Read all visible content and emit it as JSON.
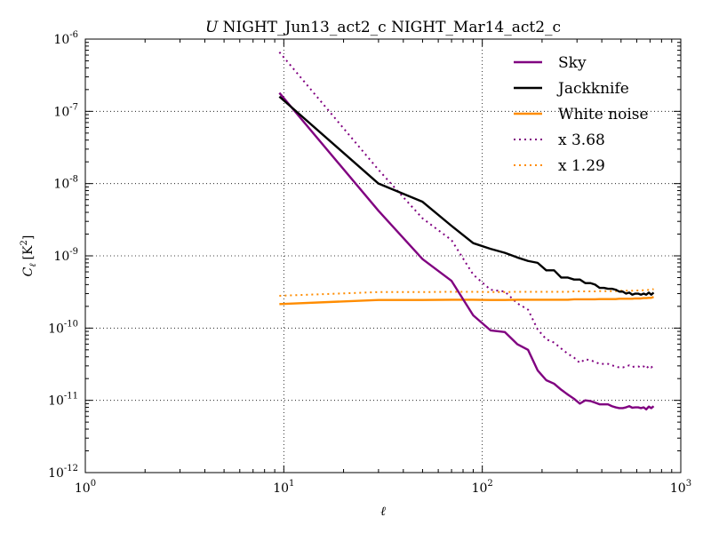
{
  "chart_data": {
    "type": "line",
    "title_prefix": "U",
    "title_rest": " NIGHT_Jun13_act2_c NIGHT_Mar14_act2_c",
    "xlabel": "ℓ",
    "ylabel_main": "C",
    "ylabel_sub": "ℓ",
    "ylabel_units": "[K",
    "ylabel_units_sup": "2",
    "ylabel_units_close": "]",
    "xscale": "log",
    "yscale": "log",
    "xlim": [
      1,
      1000
    ],
    "ylim": [
      1e-12,
      1e-06
    ],
    "grid": true,
    "legend_position": "top-right",
    "x_ticks": [
      {
        "value": 1,
        "base": "10",
        "exp": "0"
      },
      {
        "value": 10,
        "base": "10",
        "exp": "1"
      },
      {
        "value": 100,
        "base": "10",
        "exp": "2"
      },
      {
        "value": 1000,
        "base": "10",
        "exp": "3"
      }
    ],
    "y_ticks": [
      {
        "value": 1e-12,
        "base": "10",
        "exp": "-12"
      },
      {
        "value": 1e-11,
        "base": "10",
        "exp": "-11"
      },
      {
        "value": 1e-10,
        "base": "10",
        "exp": "-10"
      },
      {
        "value": 1e-09,
        "base": "10",
        "exp": "-9"
      },
      {
        "value": 1e-08,
        "base": "10",
        "exp": "-8"
      },
      {
        "value": 1e-07,
        "base": "10",
        "exp": "-7"
      },
      {
        "value": 1e-06,
        "base": "10",
        "exp": "-6"
      }
    ],
    "series": [
      {
        "name": "Sky",
        "color": "#800080",
        "dash": "solid",
        "x": [
          9.5,
          30,
          50,
          70,
          90,
          110,
          130,
          150,
          170,
          190,
          210,
          230,
          250,
          270,
          290,
          310,
          330,
          350,
          370,
          390,
          410,
          430,
          450,
          470,
          490,
          510,
          530,
          550,
          570,
          590,
          610,
          630,
          650,
          670,
          690,
          710,
          730
        ],
        "y": [
          1.8e-07,
          4.2e-09,
          9e-10,
          4.5e-10,
          1.5e-10,
          9.3e-11,
          8.8e-11,
          6e-11,
          5e-11,
          2.6e-11,
          1.9e-11,
          1.7e-11,
          1.4e-11,
          1.2e-11,
          1.05e-11,
          9e-12,
          1e-11,
          9.8e-12,
          9.3e-12,
          8.8e-12,
          8.8e-12,
          8.8e-12,
          8.3e-12,
          8e-12,
          7.8e-12,
          7.8e-12,
          8e-12,
          8.3e-12,
          7.9e-12,
          8e-12,
          8e-12,
          7.8e-12,
          8e-12,
          7.5e-12,
          8.2e-12,
          7.8e-12,
          8.3e-12
        ]
      },
      {
        "name": "Jackknife",
        "color": "#000000",
        "dash": "solid",
        "x": [
          9.5,
          30,
          50,
          70,
          90,
          110,
          130,
          150,
          170,
          190,
          210,
          230,
          250,
          270,
          290,
          310,
          330,
          350,
          370,
          390,
          410,
          430,
          450,
          470,
          490,
          510,
          530,
          550,
          570,
          590,
          610,
          630,
          650,
          670,
          690,
          710,
          730
        ],
        "y": [
          1.6e-07,
          1e-08,
          5.6e-09,
          2.6e-09,
          1.5e-09,
          1.25e-09,
          1.1e-09,
          9.5e-10,
          8.5e-10,
          8e-10,
          6.3e-10,
          6.3e-10,
          5e-10,
          5e-10,
          4.7e-10,
          4.7e-10,
          4.2e-10,
          4.2e-10,
          4e-10,
          3.6e-10,
          3.6e-10,
          3.5e-10,
          3.5e-10,
          3.4e-10,
          3.2e-10,
          3.2e-10,
          3e-10,
          3.1e-10,
          2.9e-10,
          3e-10,
          3e-10,
          2.9e-10,
          3e-10,
          2.9e-10,
          3.1e-10,
          2.9e-10,
          3.1e-10
        ]
      },
      {
        "name": "White noise",
        "color": "#FF8C00",
        "dash": "solid",
        "x": [
          9.5,
          30,
          50,
          70,
          90,
          110,
          130,
          150,
          170,
          190,
          210,
          230,
          250,
          270,
          290,
          310,
          330,
          350,
          370,
          390,
          410,
          430,
          450,
          470,
          490,
          510,
          530,
          550,
          570,
          590,
          610,
          630,
          650,
          670,
          690,
          710,
          730
        ],
        "y": [
          2.15e-10,
          2.45e-10,
          2.45e-10,
          2.47e-10,
          2.47e-10,
          2.45e-10,
          2.45e-10,
          2.47e-10,
          2.47e-10,
          2.47e-10,
          2.47e-10,
          2.47e-10,
          2.47e-10,
          2.47e-10,
          2.5e-10,
          2.5e-10,
          2.5e-10,
          2.5e-10,
          2.5e-10,
          2.52e-10,
          2.52e-10,
          2.52e-10,
          2.52e-10,
          2.52e-10,
          2.55e-10,
          2.55e-10,
          2.55e-10,
          2.55e-10,
          2.55e-10,
          2.57e-10,
          2.57e-10,
          2.57e-10,
          2.6e-10,
          2.6e-10,
          2.62e-10,
          2.62e-10,
          2.7e-10
        ]
      },
      {
        "name": "x 3.68",
        "color": "#800080",
        "dash": "dotted",
        "x": [
          9.5,
          30,
          50,
          70,
          90,
          110,
          130,
          150,
          170,
          190,
          210,
          230,
          250,
          270,
          290,
          310,
          330,
          350,
          370,
          390,
          410,
          430,
          450,
          470,
          490,
          510,
          530,
          550,
          570,
          590,
          610,
          630,
          650,
          670,
          690,
          710,
          730
        ],
        "y": [
          6.6e-07,
          1.55e-08,
          3.3e-09,
          1.65e-09,
          5.5e-10,
          3.4e-10,
          3.2e-10,
          2.2e-10,
          1.8e-10,
          9.6e-11,
          7e-11,
          6.3e-11,
          5.2e-11,
          4.4e-11,
          3.9e-11,
          3.3e-11,
          3.7e-11,
          3.6e-11,
          3.4e-11,
          3.2e-11,
          3.2e-11,
          3.2e-11,
          3.05e-11,
          2.95e-11,
          2.85e-11,
          2.85e-11,
          2.95e-11,
          3.05e-11,
          2.9e-11,
          2.95e-11,
          2.95e-11,
          2.85e-11,
          2.95e-11,
          2.75e-11,
          3e-11,
          2.85e-11,
          3.05e-11
        ]
      },
      {
        "name": "x 1.29",
        "color": "#FF8C00",
        "dash": "dotted",
        "x": [
          9.5,
          30,
          50,
          70,
          90,
          110,
          130,
          150,
          170,
          190,
          210,
          230,
          250,
          270,
          290,
          310,
          330,
          350,
          370,
          390,
          410,
          430,
          450,
          470,
          490,
          510,
          530,
          550,
          570,
          590,
          610,
          630,
          650,
          670,
          690,
          710,
          730
        ],
        "y": [
          2.8e-10,
          3.15e-10,
          3.15e-10,
          3.18e-10,
          3.18e-10,
          3.15e-10,
          3.15e-10,
          3.18e-10,
          3.18e-10,
          3.18e-10,
          3.18e-10,
          3.18e-10,
          3.18e-10,
          3.18e-10,
          3.22e-10,
          3.22e-10,
          3.22e-10,
          3.22e-10,
          3.22e-10,
          3.25e-10,
          3.25e-10,
          3.25e-10,
          3.25e-10,
          3.25e-10,
          3.29e-10,
          3.29e-10,
          3.29e-10,
          3.29e-10,
          3.29e-10,
          3.32e-10,
          3.32e-10,
          3.32e-10,
          3.35e-10,
          3.35e-10,
          3.38e-10,
          3.38e-10,
          3.48e-10
        ]
      }
    ]
  }
}
